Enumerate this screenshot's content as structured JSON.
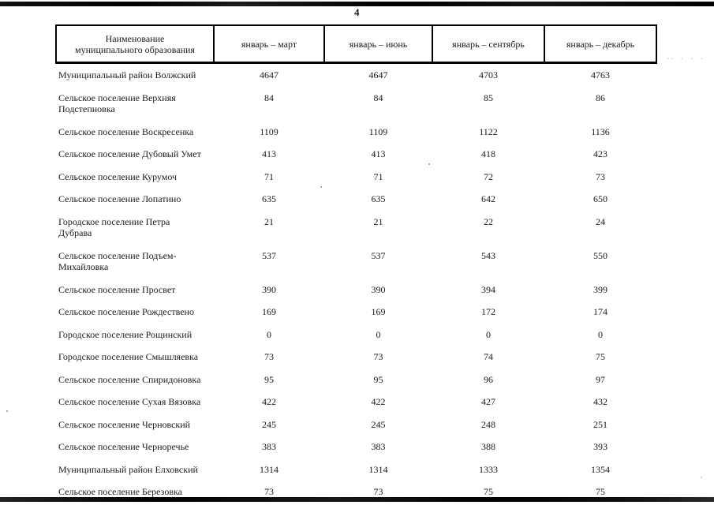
{
  "page": {
    "number": "4"
  },
  "colors": {
    "ink": "#1a1a1a",
    "border": "#000000",
    "paper": "#ffffff"
  },
  "table": {
    "columns": [
      {
        "label": "Наименование муниципального образования"
      },
      {
        "label": "январь – март"
      },
      {
        "label": "январь – июнь"
      },
      {
        "label": "январь – сентябрь"
      },
      {
        "label": "январь – декабрь"
      }
    ],
    "rows": [
      {
        "name": "Муниципальный район Волжский",
        "values": [
          "4647",
          "4647",
          "4703",
          "4763"
        ]
      },
      {
        "name": "Сельское поселение Верхняя Подстепновка",
        "values": [
          "84",
          "84",
          "85",
          "86"
        ]
      },
      {
        "name": "Сельское поселение Воскресенка",
        "values": [
          "1109",
          "1109",
          "1122",
          "1136"
        ]
      },
      {
        "name": "Сельское поселение Дубовый Умет",
        "values": [
          "413",
          "413",
          "418",
          "423"
        ]
      },
      {
        "name": "Сельское поселение Курумоч",
        "values": [
          "71",
          "71",
          "72",
          "73"
        ]
      },
      {
        "name": "Сельское поселение Лопатино",
        "values": [
          "635",
          "635",
          "642",
          "650"
        ]
      },
      {
        "name": "Городское поселение Петра Дубрава",
        "values": [
          "21",
          "21",
          "22",
          "24"
        ]
      },
      {
        "name": "Сельское поселение Подъем-Михайловка",
        "values": [
          "537",
          "537",
          "543",
          "550"
        ]
      },
      {
        "name": "Сельское поселение Просвет",
        "values": [
          "390",
          "390",
          "394",
          "399"
        ]
      },
      {
        "name": "Сельское поселение Рождествено",
        "values": [
          "169",
          "169",
          "172",
          "174"
        ]
      },
      {
        "name": "Городское поселение Рощинский",
        "values": [
          "0",
          "0",
          "0",
          "0"
        ]
      },
      {
        "name": "Городское поселение Смышляевка",
        "values": [
          "73",
          "73",
          "74",
          "75"
        ]
      },
      {
        "name": "Сельское поселение Спиридоновка",
        "values": [
          "95",
          "95",
          "96",
          "97"
        ]
      },
      {
        "name": "Сельское поселение Сухая Вязовка",
        "values": [
          "422",
          "422",
          "427",
          "432"
        ]
      },
      {
        "name": "Сельское поселение Черновский",
        "values": [
          "245",
          "245",
          "248",
          "251"
        ]
      },
      {
        "name": "Сельское поселение Черноречье",
        "values": [
          "383",
          "383",
          "388",
          "393"
        ]
      },
      {
        "name": "Муниципальный район Елховский",
        "values": [
          "1314",
          "1314",
          "1333",
          "1354"
        ]
      },
      {
        "name": "Сельское поселение Березовка",
        "values": [
          "73",
          "73",
          "75",
          "75"
        ]
      }
    ]
  }
}
